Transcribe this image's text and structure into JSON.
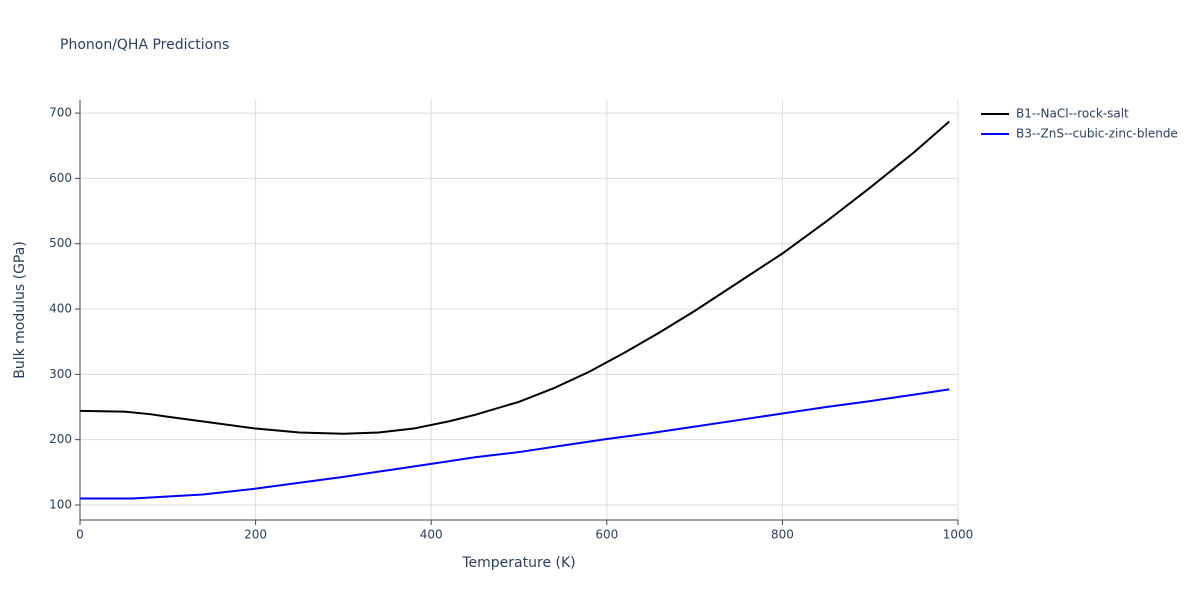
{
  "chart_data": {
    "type": "line",
    "title": "Phonon/QHA Predictions",
    "x_label": "Temperature (K)",
    "y_label": "Bulk modulus (GPa)",
    "xlim": [
      0,
      1000
    ],
    "xticks": [
      0,
      200,
      400,
      600,
      800,
      1000
    ],
    "ylim": [
      77,
      720
    ],
    "yticks": [
      100,
      200,
      300,
      400,
      500,
      600,
      700
    ],
    "grid": true,
    "legend": "right",
    "series": [
      {
        "name": "B1--NaCl--rock-salt",
        "color": "#000000",
        "x": [
          0,
          50,
          80,
          100,
          150,
          200,
          250,
          300,
          340,
          380,
          420,
          450,
          500,
          540,
          580,
          620,
          660,
          700,
          750,
          800,
          850,
          900,
          950,
          990
        ],
        "values": [
          244,
          243,
          239,
          235,
          226,
          217,
          211,
          209,
          211,
          217,
          228,
          238,
          258,
          279,
          304,
          333,
          364,
          397,
          441,
          485,
          534,
          586,
          640,
          687
        ]
      },
      {
        "name": "B3--ZnS--cubic-zinc-blende",
        "color": "#0000ff",
        "x": [
          0,
          60,
          100,
          140,
          200,
          250,
          300,
          350,
          400,
          450,
          500,
          550,
          600,
          650,
          700,
          750,
          800,
          850,
          900,
          950,
          990
        ],
        "values": [
          110,
          110,
          113,
          116,
          125,
          134,
          143,
          153,
          163,
          173,
          181,
          191,
          201,
          210,
          220,
          230,
          240,
          250,
          259,
          269,
          277
        ]
      }
    ]
  }
}
